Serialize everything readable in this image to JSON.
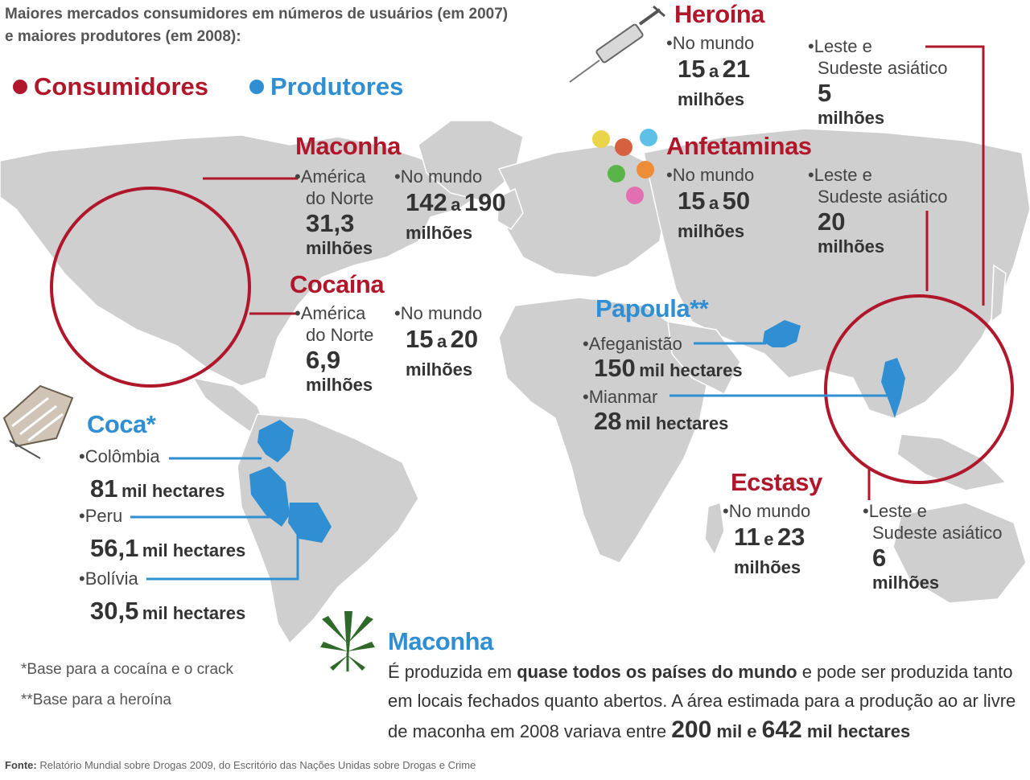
{
  "header": {
    "line1": "Maiores mercados consumidores em números de usuários (em 2007)",
    "line2": "e maiores produtores (em 2008):"
  },
  "legend": {
    "consumers": "Consumidores",
    "producers": "Produtores",
    "consumer_color": "#b0172b",
    "producer_color": "#2f8fd2"
  },
  "maconha_consumo": {
    "title": "Maconha",
    "region_label_1": "•América",
    "region_label_2": "do Norte",
    "region_value": "31,3",
    "region_unit": "milhões",
    "world_label": "•No mundo",
    "world_from": "142",
    "world_sep": "a",
    "world_to": "190",
    "world_unit": "milhões"
  },
  "cocaina": {
    "title": "Cocaína",
    "region_label_1": "•América",
    "region_label_2": "do Norte",
    "region_value": "6,9",
    "region_unit": "milhões",
    "world_label": "•No mundo",
    "world_from": "15",
    "world_sep": "a",
    "world_to": "20",
    "world_unit": "milhões"
  },
  "heroina": {
    "title": "Heroína",
    "world_label": "•No mundo",
    "world_from": "15",
    "world_sep": "a",
    "world_to": "21",
    "world_unit": "milhões",
    "region_label_1": "•Leste e",
    "region_label_2": "Sudeste asiático",
    "region_value": "5",
    "region_unit": "milhões"
  },
  "anfetaminas": {
    "title": "Anfetaminas",
    "world_label": "•No mundo",
    "world_from": "15",
    "world_sep": "a",
    "world_to": "50",
    "world_unit": "milhões",
    "region_label_1": "•Leste e",
    "region_label_2": "Sudeste asiático",
    "region_value": "20",
    "region_unit": "milhões"
  },
  "papoula": {
    "title": "Papoula**",
    "items": [
      {
        "label": "•Afeganistão",
        "value": "150",
        "unit": "mil hectares"
      },
      {
        "label": "•Mianmar",
        "value": "28",
        "unit": "mil hectares"
      }
    ]
  },
  "ecstasy": {
    "title": "Ecstasy",
    "world_label": "•No mundo",
    "world_from": "11",
    "world_sep": "e",
    "world_to": "23",
    "world_unit": "milhões",
    "region_label_1": "•Leste e",
    "region_label_2": "Sudeste asiático",
    "region_value": "6",
    "region_unit": "milhões"
  },
  "coca": {
    "title": "Coca*",
    "items": [
      {
        "label": "•Colômbia",
        "value": "81",
        "unit": "mil hectares"
      },
      {
        "label": "•Peru",
        "value": "56,1",
        "unit": "mil hectares"
      },
      {
        "label": "•Bolívia",
        "value": "30,5",
        "unit": "mil hectares"
      }
    ]
  },
  "notes": {
    "note1": "*Base para a cocaína e o crack",
    "note2": "**Base para a heroína"
  },
  "maconha_producao": {
    "title": "Maconha",
    "p1": "É produzida em ",
    "p1_bold": "quase todos os países do mundo",
    "p1_end": " e pode ser produzida tanto",
    "p2": "em locais fechados quanto abertos. A área estimada para a produção ao ar livre",
    "p3": "de maconha em 2008 variava entre ",
    "p3_v1": "200",
    "p3_u1": " mil",
    "p3_and": " e ",
    "p3_v2": "642",
    "p3_u2": " mil hectares"
  },
  "footer": {
    "label": "Fonte:",
    "text": " Relatório Mundial sobre Drogas 2009, do Escritório das Nações Unidas sobre Drogas e Crime"
  },
  "icons": [
    "syringe-icon",
    "pills-icon",
    "cocaine-lines-icon",
    "cannabis-leaf-icon"
  ]
}
